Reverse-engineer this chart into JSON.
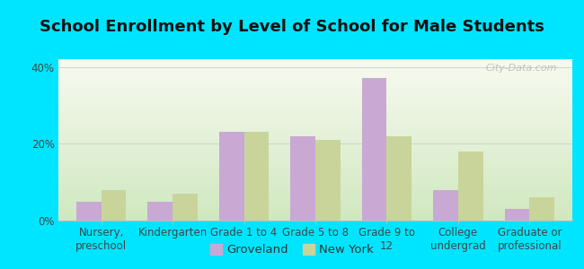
{
  "title": "School Enrollment by Level of School for Male Students",
  "categories": [
    "Nursery,\npreschool",
    "Kindergarten",
    "Grade 1 to 4",
    "Grade 5 to 8",
    "Grade 9 to\n12",
    "College\nundergrad",
    "Graduate or\nprofessional"
  ],
  "groveland": [
    5,
    5,
    23,
    22,
    37,
    8,
    3
  ],
  "new_york": [
    8,
    7,
    23,
    21,
    22,
    18,
    6
  ],
  "groveland_color": "#c9a8d4",
  "new_york_color": "#c8d49a",
  "background_outer": "#00e5ff",
  "ylim": [
    0,
    42
  ],
  "yticks": [
    0,
    20,
    40
  ],
  "ytick_labels": [
    "0%",
    "20%",
    "40%"
  ],
  "bar_width": 0.35,
  "legend_labels": [
    "Groveland",
    "New York"
  ],
  "title_fontsize": 13,
  "tick_fontsize": 8.5
}
